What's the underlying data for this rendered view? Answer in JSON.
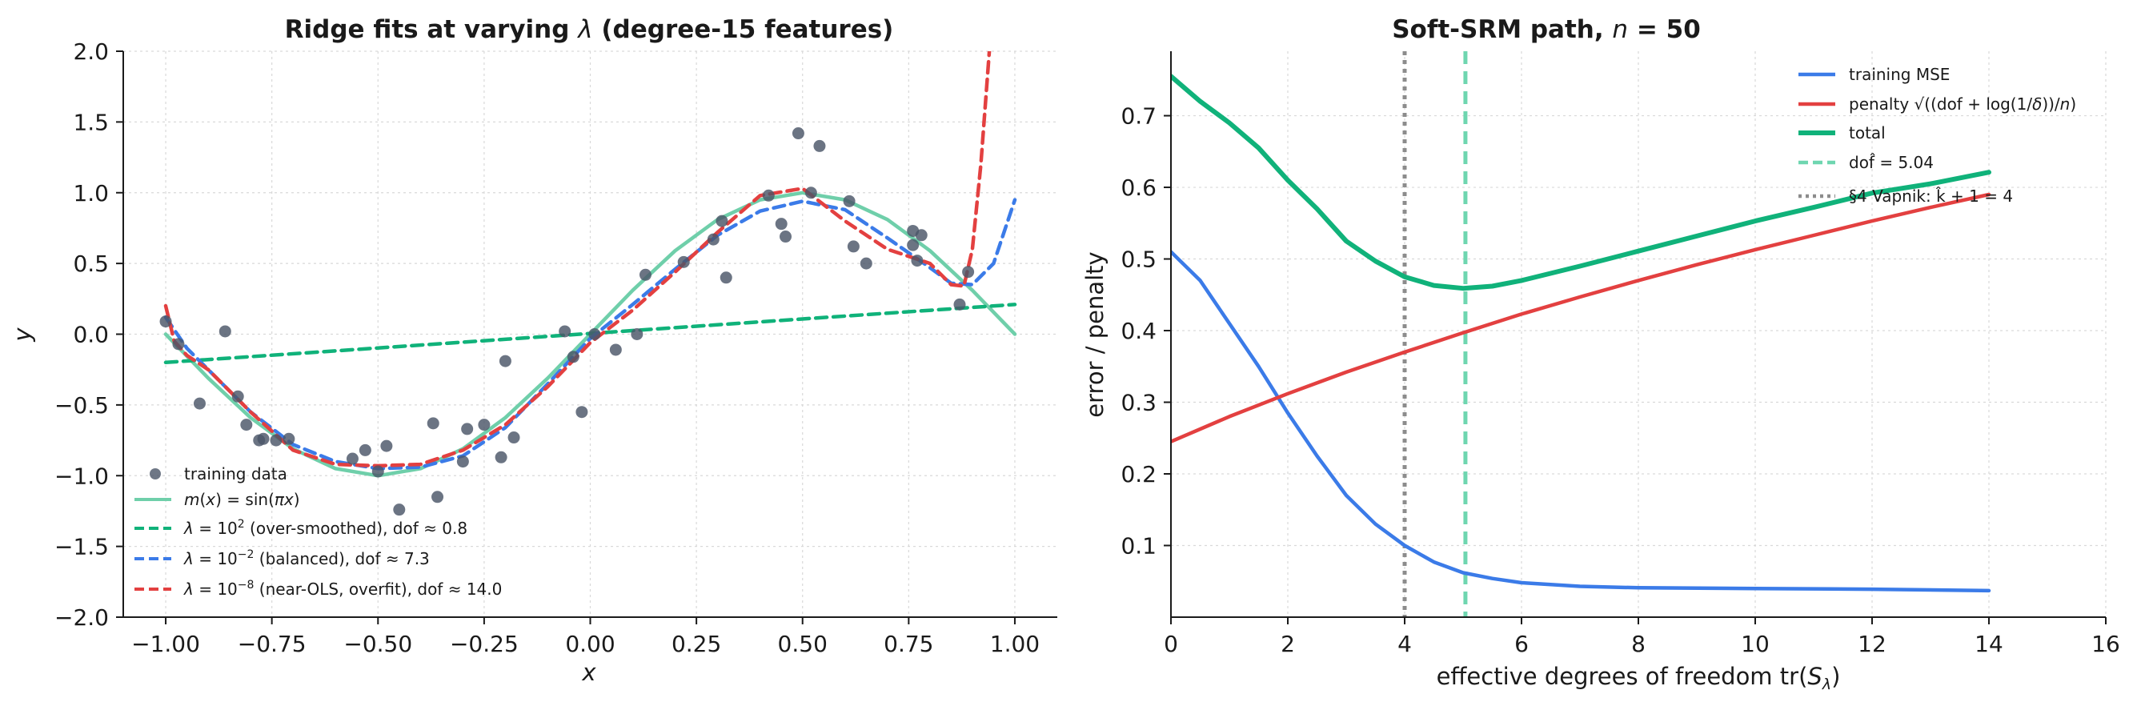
{
  "chart_data": [
    {
      "type": "line",
      "title": "Ridge fits at varying λ (degree-15 features)",
      "xlabel": "x",
      "ylabel": "y",
      "xlim": [
        -1.1,
        1.1
      ],
      "ylim": [
        -2.0,
        2.0
      ],
      "x_ticks": [
        "−1.00",
        "−0.75",
        "−0.50",
        "−0.25",
        "0.00",
        "0.25",
        "0.50",
        "0.75",
        "1.00"
      ],
      "x_tick_values": [
        -1.0,
        -0.75,
        -0.5,
        -0.25,
        0.0,
        0.25,
        0.5,
        0.75,
        1.0
      ],
      "y_ticks": [
        "−2.0",
        "−1.5",
        "−1.0",
        "−0.5",
        "0.0",
        "0.5",
        "1.0",
        "1.5",
        "2.0"
      ],
      "y_tick_values": [
        -2.0,
        -1.5,
        -1.0,
        -0.5,
        0.0,
        0.5,
        1.0,
        1.5,
        2.0
      ],
      "grid": true,
      "legend_position": "lower-left",
      "scatter": {
        "name": "training data",
        "color": "#4a5568",
        "points": [
          [
            -1.0,
            0.09
          ],
          [
            -0.97,
            -0.07
          ],
          [
            -0.92,
            -0.49
          ],
          [
            -0.86,
            0.02
          ],
          [
            -0.83,
            -0.44
          ],
          [
            -0.81,
            -0.64
          ],
          [
            -0.78,
            -0.75
          ],
          [
            -0.77,
            -0.74
          ],
          [
            -0.74,
            -0.75
          ],
          [
            -0.71,
            -0.74
          ],
          [
            -0.56,
            -0.88
          ],
          [
            -0.53,
            -0.82
          ],
          [
            -0.5,
            -0.97
          ],
          [
            -0.48,
            -0.79
          ],
          [
            -0.45,
            -1.24
          ],
          [
            -0.37,
            -0.63
          ],
          [
            -0.36,
            -1.15
          ],
          [
            -0.3,
            -0.9
          ],
          [
            -0.29,
            -0.67
          ],
          [
            -0.25,
            -0.64
          ],
          [
            -0.21,
            -0.87
          ],
          [
            -0.2,
            -0.19
          ],
          [
            -0.18,
            -0.73
          ],
          [
            -0.06,
            0.02
          ],
          [
            -0.04,
            -0.16
          ],
          [
            -0.02,
            -0.55
          ],
          [
            0.01,
            0.0
          ],
          [
            0.06,
            -0.11
          ],
          [
            0.11,
            0.0
          ],
          [
            0.13,
            0.42
          ],
          [
            0.22,
            0.51
          ],
          [
            0.29,
            0.67
          ],
          [
            0.31,
            0.8
          ],
          [
            0.32,
            0.4
          ],
          [
            0.42,
            0.98
          ],
          [
            0.45,
            0.78
          ],
          [
            0.46,
            0.69
          ],
          [
            0.49,
            1.42
          ],
          [
            0.52,
            1.0
          ],
          [
            0.54,
            1.33
          ],
          [
            0.61,
            0.94
          ],
          [
            0.62,
            0.62
          ],
          [
            0.65,
            0.5
          ],
          [
            0.76,
            0.73
          ],
          [
            0.76,
            0.63
          ],
          [
            0.77,
            0.52
          ],
          [
            0.78,
            0.7
          ],
          [
            0.87,
            0.21
          ],
          [
            0.89,
            0.44
          ]
        ]
      },
      "series": [
        {
          "name": "m(x) = sin(πx)",
          "color": "#6fcfaa",
          "style": "solid",
          "x": [
            -1.0,
            -0.9,
            -0.8,
            -0.7,
            -0.6,
            -0.5,
            -0.4,
            -0.3,
            -0.2,
            -0.1,
            0.0,
            0.1,
            0.2,
            0.3,
            0.4,
            0.5,
            0.6,
            0.7,
            0.8,
            0.9,
            1.0
          ],
          "y": [
            0.0,
            -0.31,
            -0.59,
            -0.81,
            -0.95,
            -1.0,
            -0.95,
            -0.81,
            -0.59,
            -0.31,
            0.0,
            0.31,
            0.59,
            0.81,
            0.95,
            1.0,
            0.95,
            0.81,
            0.59,
            0.31,
            0.0
          ]
        },
        {
          "name": "λ = 10² (over-smoothed), dof ≈ 0.8",
          "color": "#10b27a",
          "style": "dashed",
          "x": [
            -1.0,
            1.0
          ],
          "y": [
            -0.2,
            0.21
          ]
        },
        {
          "name": "λ = 10⁻² (balanced), dof ≈ 7.3",
          "color": "#3b7be8",
          "style": "dashed",
          "x": [
            -1.0,
            -0.95,
            -0.9,
            -0.8,
            -0.7,
            -0.6,
            -0.5,
            -0.4,
            -0.3,
            -0.2,
            -0.1,
            0.0,
            0.1,
            0.2,
            0.3,
            0.4,
            0.5,
            0.6,
            0.7,
            0.8,
            0.85,
            0.9,
            0.95,
            1.0
          ],
          "y": [
            0.12,
            -0.1,
            -0.25,
            -0.55,
            -0.78,
            -0.9,
            -0.95,
            -0.94,
            -0.86,
            -0.66,
            -0.35,
            -0.03,
            0.21,
            0.46,
            0.7,
            0.87,
            0.94,
            0.88,
            0.68,
            0.47,
            0.36,
            0.35,
            0.5,
            0.95
          ]
        },
        {
          "name": "λ = 10⁻⁸ (near-OLS, overfit), dof ≈ 14.0",
          "color": "#e34040",
          "style": "dashed",
          "x": [
            -1.0,
            -0.98,
            -0.95,
            -0.9,
            -0.8,
            -0.7,
            -0.6,
            -0.5,
            -0.4,
            -0.3,
            -0.2,
            -0.1,
            0.0,
            0.1,
            0.2,
            0.3,
            0.4,
            0.5,
            0.6,
            0.7,
            0.8,
            0.85,
            0.88,
            0.9,
            0.92,
            0.94
          ],
          "y": [
            0.2,
            -0.05,
            -0.15,
            -0.25,
            -0.55,
            -0.82,
            -0.92,
            -0.93,
            -0.92,
            -0.82,
            -0.64,
            -0.37,
            -0.06,
            0.17,
            0.44,
            0.72,
            0.98,
            1.03,
            0.8,
            0.6,
            0.5,
            0.35,
            0.34,
            0.6,
            1.2,
            2.0
          ]
        }
      ]
    },
    {
      "type": "line",
      "title": "Soft-SRM path, n = 50",
      "xlabel": "effective degrees of freedom tr(Sλ)",
      "ylabel": "error / penalty",
      "xlim": [
        0,
        16
      ],
      "ylim": [
        0.0,
        0.79
      ],
      "x_ticks": [
        "0",
        "2",
        "4",
        "6",
        "8",
        "10",
        "12",
        "14",
        "16"
      ],
      "x_tick_values": [
        0,
        2,
        4,
        6,
        8,
        10,
        12,
        14,
        16
      ],
      "y_ticks": [
        "0.1",
        "0.2",
        "0.3",
        "0.4",
        "0.5",
        "0.6",
        "0.7"
      ],
      "y_tick_values": [
        0.1,
        0.2,
        0.3,
        0.4,
        0.5,
        0.6,
        0.7
      ],
      "grid": true,
      "legend_position": "top-right",
      "series": [
        {
          "name": "training MSE",
          "color": "#3b7be8",
          "style": "solid",
          "x": [
            0,
            0.5,
            1,
            1.5,
            2,
            2.5,
            3,
            3.5,
            4,
            4.5,
            5,
            5.5,
            6,
            7,
            8,
            10,
            12,
            14
          ],
          "y": [
            0.51,
            0.47,
            0.41,
            0.35,
            0.285,
            0.225,
            0.17,
            0.13,
            0.1,
            0.077,
            0.062,
            0.054,
            0.048,
            0.043,
            0.041,
            0.04,
            0.039,
            0.037
          ]
        },
        {
          "name": "penalty √((dof + log(1/δ))/n)",
          "color": "#e34040",
          "style": "solid",
          "x": [
            0,
            1,
            2,
            3,
            4,
            5,
            6,
            7,
            8,
            9,
            10,
            11,
            12,
            13,
            14
          ],
          "y": [
            0.245,
            0.28,
            0.312,
            0.342,
            0.37,
            0.397,
            0.423,
            0.447,
            0.47,
            0.492,
            0.513,
            0.533,
            0.553,
            0.572,
            0.59
          ]
        },
        {
          "name": "total",
          "color": "#10b27a",
          "style": "solid",
          "x": [
            0,
            0.5,
            1,
            1.5,
            2,
            2.5,
            3,
            3.5,
            4,
            4.5,
            5,
            5.5,
            6,
            7,
            8,
            9,
            10,
            11,
            12,
            13,
            14
          ],
          "y": [
            0.755,
            0.72,
            0.69,
            0.655,
            0.61,
            0.57,
            0.525,
            0.497,
            0.475,
            0.463,
            0.459,
            0.462,
            0.47,
            0.49,
            0.511,
            0.532,
            0.553,
            0.572,
            0.592,
            0.605,
            0.621
          ]
        }
      ],
      "vlines": [
        {
          "name": "dof̂ = 5.04",
          "x": 5.04,
          "color": "#6fd6b0",
          "style": "dashed"
        },
        {
          "name": "§4 Vapnik: k̂ + 1 = 4",
          "x": 4.0,
          "color": "#8c8c8c",
          "style": "dotted"
        }
      ]
    }
  ]
}
